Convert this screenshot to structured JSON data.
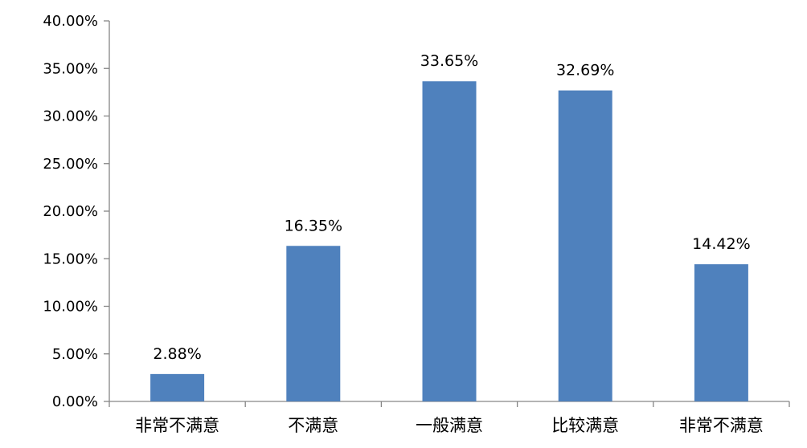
{
  "chart_data": {
    "type": "bar",
    "categories": [
      "非常不满意",
      "不满意",
      "一般满意",
      "比较满意",
      "非常不满意"
    ],
    "values": [
      2.88,
      16.35,
      33.65,
      32.69,
      14.42
    ],
    "data_labels": [
      "2.88%",
      "16.35%",
      "33.65%",
      "32.69%",
      "14.42%"
    ],
    "y_ticks": [
      0,
      5,
      10,
      15,
      20,
      25,
      30,
      35,
      40
    ],
    "y_tick_labels": [
      "0.00%",
      "5.00%",
      "10.00%",
      "15.00%",
      "20.00%",
      "25.00%",
      "30.00%",
      "35.00%",
      "40.00%"
    ],
    "ylim": [
      0,
      40
    ],
    "grid": false,
    "legend": "none",
    "bar_color": "#4f81bd",
    "axis_color": "#868686"
  }
}
